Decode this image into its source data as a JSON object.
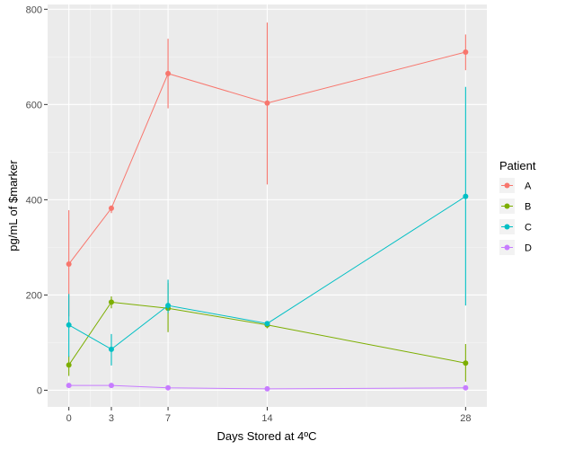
{
  "chart_data": {
    "type": "line",
    "xlabel": "Days Stored at 4ºC",
    "ylabel": "pg/mL of $marker",
    "x": [
      0,
      3,
      7,
      14,
      28
    ],
    "x_ticks": [
      0,
      3,
      7,
      14,
      28
    ],
    "y_ticks": [
      0,
      200,
      400,
      600,
      800
    ],
    "xlim": [
      -1.5,
      29.5
    ],
    "ylim": [
      -35,
      810
    ],
    "grid": true,
    "legend": {
      "title": "Patient",
      "placement": "right"
    },
    "series": [
      {
        "name": "A",
        "color": "#F8766D",
        "values": [
          265,
          382,
          665,
          603,
          710
        ],
        "error_low": [
          155,
          372,
          592,
          432,
          672
        ],
        "error_high": [
          378,
          388,
          738,
          772,
          747
        ]
      },
      {
        "name": "B",
        "color": "#7CAE00",
        "values": [
          53,
          185,
          172,
          137,
          57
        ],
        "error_low": [
          30,
          172,
          122,
          130,
          18
        ],
        "error_high": [
          72,
          197,
          225,
          143,
          97
        ]
      },
      {
        "name": "C",
        "color": "#00BFC4",
        "values": [
          137,
          86,
          178,
          140,
          407
        ],
        "error_low": [
          70,
          52,
          162,
          135,
          178
        ],
        "error_high": [
          202,
          118,
          232,
          145,
          637
        ]
      },
      {
        "name": "D",
        "color": "#C77CFF",
        "values": [
          10,
          10,
          5,
          3,
          5
        ],
        "error_low": [
          8,
          7,
          3,
          2,
          3
        ],
        "error_high": [
          12,
          13,
          7,
          4,
          7
        ]
      }
    ]
  }
}
